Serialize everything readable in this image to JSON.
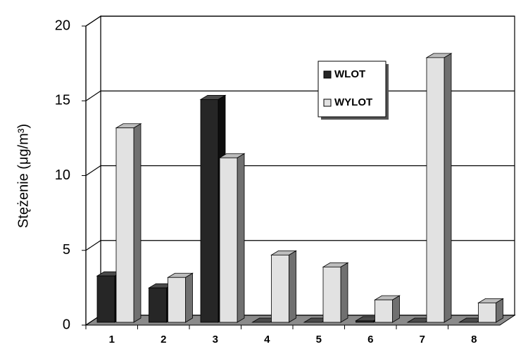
{
  "chart_data": {
    "type": "bar3d",
    "y_label": "Stężenie (μg/m³)",
    "categories": [
      "1",
      "2",
      "3",
      "4",
      "5",
      "6",
      "7",
      "8"
    ],
    "series": [
      {
        "name": "WLOT",
        "color": "#262626",
        "values": [
          3.1,
          2.3,
          14.9,
          0,
          0,
          0.1,
          0,
          0
        ]
      },
      {
        "name": "WYLOT",
        "color": "#e2e2e2",
        "values": [
          13.0,
          3.0,
          11.0,
          4.5,
          3.7,
          1.5,
          17.7,
          1.3
        ]
      }
    ],
    "ylim": [
      0,
      20
    ],
    "yticks": [
      0,
      5,
      10,
      15,
      20
    ],
    "grid": true
  }
}
